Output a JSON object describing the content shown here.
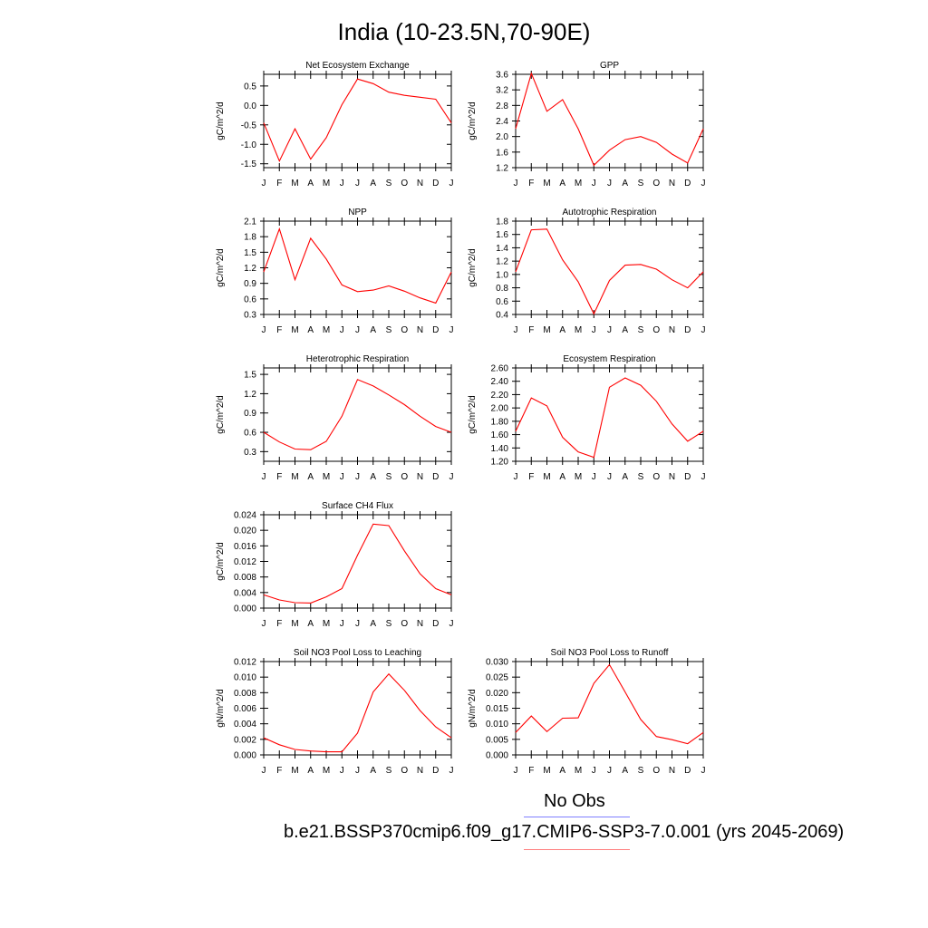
{
  "title": "India (10-23.5N,70-90E)",
  "months": [
    "J",
    "F",
    "M",
    "A",
    "M",
    "J",
    "J",
    "A",
    "S",
    "O",
    "N",
    "D",
    "J"
  ],
  "legend": [
    {
      "label": "No Obs",
      "color": "#7f7fff"
    },
    {
      "label": "b.e21.BSSP370cmip6.f09_g17.CMIP6-SSP3-7.0.001 (yrs 2045-2069)",
      "color": "#ff7f7f"
    }
  ],
  "series_color": "#ff0000",
  "chart_data": [
    {
      "type": "line",
      "title": "Net Ecosystem Exchange",
      "ylabel": "gC/m^2/d",
      "ylim": [
        -1.6,
        0.8
      ],
      "yticks": [
        -1.5,
        -1.0,
        -0.5,
        0.0,
        0.5
      ],
      "yticklabels": [
        "-1.5",
        "-1.0",
        "-0.5",
        "0.0",
        "0.5"
      ],
      "values": [
        -0.45,
        -1.43,
        -0.6,
        -1.38,
        -0.83,
        0.02,
        0.68,
        0.56,
        0.34,
        0.26,
        0.21,
        0.16,
        -0.45
      ]
    },
    {
      "type": "line",
      "title": "GPP",
      "ylabel": "gC/m^2/d",
      "ylim": [
        1.2,
        3.6
      ],
      "yticks": [
        1.2,
        1.6,
        2.0,
        2.4,
        2.8,
        3.2,
        3.6
      ],
      "yticklabels": [
        "1.2",
        "1.6",
        "2.0",
        "2.4",
        "2.8",
        "3.2",
        "3.6"
      ],
      "values": [
        2.2,
        3.62,
        2.65,
        2.95,
        2.2,
        1.26,
        1.65,
        1.92,
        2.0,
        1.85,
        1.55,
        1.32,
        2.2
      ]
    },
    {
      "type": "line",
      "title": "NPP",
      "ylabel": "gC/m^2/d",
      "ylim": [
        0.3,
        2.1
      ],
      "yticks": [
        0.3,
        0.6,
        0.9,
        1.2,
        1.5,
        1.8,
        2.1
      ],
      "yticklabels": [
        "0.3",
        "0.6",
        "0.9",
        "1.2",
        "1.5",
        "1.8",
        "2.1"
      ],
      "values": [
        1.12,
        1.95,
        0.97,
        1.77,
        1.37,
        0.87,
        0.74,
        0.77,
        0.85,
        0.75,
        0.62,
        0.52,
        1.12
      ]
    },
    {
      "type": "line",
      "title": "Autotrophic Respiration",
      "ylabel": "gC/m^2/d",
      "ylim": [
        0.4,
        1.8
      ],
      "yticks": [
        0.4,
        0.6,
        0.8,
        1.0,
        1.2,
        1.4,
        1.6,
        1.8
      ],
      "yticklabels": [
        "0.4",
        "0.6",
        "0.8",
        "1.0",
        "1.2",
        "1.4",
        "1.6",
        "1.8"
      ],
      "values": [
        1.04,
        1.67,
        1.68,
        1.22,
        0.89,
        0.41,
        0.91,
        1.14,
        1.15,
        1.08,
        0.92,
        0.8,
        1.04
      ]
    },
    {
      "type": "line",
      "title": "Heterotrophic Respiration",
      "ylabel": "gC/m^2/d",
      "ylim": [
        0.15,
        1.6
      ],
      "yticks": [
        0.3,
        0.6,
        0.9,
        1.2,
        1.5
      ],
      "yticklabels": [
        "0.3",
        "0.6",
        "0.9",
        "1.2",
        "1.5"
      ],
      "values": [
        0.6,
        0.45,
        0.34,
        0.33,
        0.46,
        0.85,
        1.42,
        1.32,
        1.18,
        1.03,
        0.85,
        0.69,
        0.6
      ]
    },
    {
      "type": "line",
      "title": "Ecosystem Respiration",
      "ylabel": "gC/m^2/d",
      "ylim": [
        1.2,
        2.6
      ],
      "yticks": [
        1.2,
        1.4,
        1.6,
        1.8,
        2.0,
        2.2,
        2.4,
        2.6
      ],
      "yticklabels": [
        "1.20",
        "1.40",
        "1.60",
        "1.80",
        "2.00",
        "2.20",
        "2.40",
        "2.60"
      ],
      "values": [
        1.65,
        2.15,
        2.03,
        1.56,
        1.34,
        1.26,
        2.31,
        2.45,
        2.34,
        2.1,
        1.76,
        1.5,
        1.65
      ]
    },
    {
      "type": "line",
      "title": "Surface CH4 Flux",
      "ylabel": "gC/m^2/d",
      "ylim": [
        0.0,
        0.024
      ],
      "yticks": [
        0.0,
        0.004,
        0.008,
        0.012,
        0.016,
        0.02,
        0.024
      ],
      "yticklabels": [
        "0.000",
        "0.004",
        "0.008",
        "0.012",
        "0.016",
        "0.020",
        "0.024"
      ],
      "values": [
        0.0034,
        0.0021,
        0.0014,
        0.0013,
        0.0029,
        0.005,
        0.0136,
        0.0216,
        0.0212,
        0.0147,
        0.0088,
        0.005,
        0.0034
      ]
    },
    {
      "type": "line",
      "title": "Soil NO3 Pool Loss to Leaching",
      "ylabel": "gN/m^2/d",
      "ylim": [
        0.0,
        0.012
      ],
      "yticks": [
        0.0,
        0.002,
        0.004,
        0.006,
        0.008,
        0.01,
        0.012
      ],
      "yticklabels": [
        "0.000",
        "0.002",
        "0.004",
        "0.006",
        "0.008",
        "0.010",
        "0.012"
      ],
      "values": [
        0.0022,
        0.0013,
        0.0007,
        0.0005,
        0.0004,
        0.0004,
        0.0028,
        0.0081,
        0.0104,
        0.0083,
        0.0057,
        0.0036,
        0.0022
      ]
    },
    {
      "type": "line",
      "title": "Soil NO3 Pool Loss to Runoff",
      "ylabel": "gN/m^2/d",
      "ylim": [
        0.0,
        0.03
      ],
      "yticks": [
        0.0,
        0.005,
        0.01,
        0.015,
        0.02,
        0.025,
        0.03
      ],
      "yticklabels": [
        "0.000",
        "0.005",
        "0.010",
        "0.015",
        "0.020",
        "0.025",
        "0.030"
      ],
      "values": [
        0.0072,
        0.0125,
        0.0075,
        0.0118,
        0.0119,
        0.023,
        0.029,
        0.0202,
        0.0114,
        0.0059,
        0.0049,
        0.0036,
        0.0072
      ]
    }
  ]
}
